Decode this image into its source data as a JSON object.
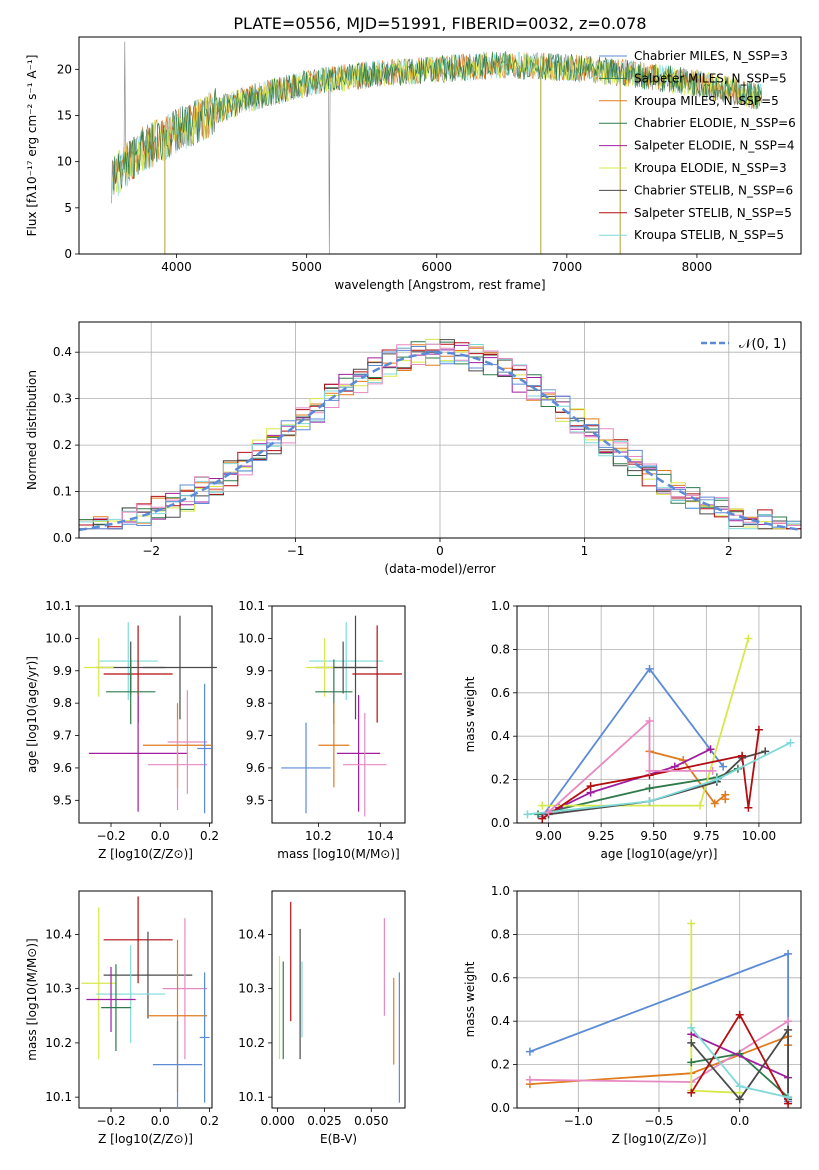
{
  "title": "PLATE=0556, MJD=51991, FIBERID=0032, z=0.078",
  "colors": [
    "#5b8bd6",
    "#e07b1e",
    "#2f7a4a",
    "#a01fa0",
    "#d7e84b",
    "#4a4a4a",
    "#b30e12",
    "#7fd9d9",
    "#e78ac3",
    "#ff7f0e",
    "#808080"
  ],
  "chart_data": [
    {
      "id": "spectrum",
      "type": "line",
      "xlabel": "wavelength [Angstrom, rest frame]",
      "ylabel": "Flux [fλ10⁻¹⁷ erg cm⁻² s⁻¹ A⁻¹]",
      "xlim": [
        3250,
        8800
      ],
      "ylim": [
        0,
        23.5
      ],
      "xticks": [
        "4000",
        "5000",
        "6000",
        "7000",
        "8000"
      ],
      "yticks": [
        "0",
        "5",
        "10",
        "15",
        "20"
      ],
      "legend_position": "right",
      "series": [
        {
          "name": "Chabrier MILES, N_SSP=3",
          "color": "#5b8bd6"
        },
        {
          "name": "Salpeter MILES, N_SSP=5",
          "color": "#2f7a4a"
        },
        {
          "name": "Kroupa MILES, N_SSP=5",
          "color": "#e07b1e"
        },
        {
          "name": "Chabrier ELODIE, N_SSP=6",
          "color": "#2f7a4a"
        },
        {
          "name": "Salpeter ELODIE, N_SSP=4",
          "color": "#a01fa0"
        },
        {
          "name": "Kroupa ELODIE, N_SSP=3",
          "color": "#d7e84b"
        },
        {
          "name": "Chabrier STELIB, N_SSP=6",
          "color": "#4a4a4a"
        },
        {
          "name": "Salpeter STELIB, N_SSP=5",
          "color": "#b30e12"
        },
        {
          "name": "Kroupa STELIB, N_SSP=5",
          "color": "#7fd9d9"
        }
      ],
      "continuum": [
        [
          3500,
          8
        ],
        [
          3700,
          11
        ],
        [
          3900,
          12.5
        ],
        [
          4100,
          14
        ],
        [
          4300,
          15.5
        ],
        [
          4600,
          17
        ],
        [
          5000,
          18.5
        ],
        [
          5500,
          19.5
        ],
        [
          6000,
          20
        ],
        [
          6500,
          20.5
        ],
        [
          7000,
          20.2
        ],
        [
          7500,
          19.5
        ],
        [
          8000,
          18.5
        ],
        [
          8500,
          17
        ]
      ]
    },
    {
      "id": "residuals",
      "type": "line",
      "xlabel": "(data-model)/error",
      "ylabel": "Normed distribution",
      "xlim": [
        -2.5,
        2.5
      ],
      "ylim": [
        0,
        0.465
      ],
      "xticks": [
        "−2",
        "−1",
        "0",
        "1",
        "2"
      ],
      "yticks": [
        "0.0",
        "0.1",
        "0.2",
        "0.3",
        "0.4"
      ],
      "legend": "𝒩(0, 1)",
      "legend_position": "top-right",
      "grid": true
    },
    {
      "id": "age-vs-Z",
      "type": "scatter",
      "xlabel": "Z [log10(Z/Z⊙)]",
      "ylabel": "age  [log10(age/yr)]",
      "xlim": [
        -0.33,
        0.21
      ],
      "ylim": [
        9.43,
        10.1
      ],
      "xticks": [
        "−0.2",
        "0.0",
        "0.2"
      ],
      "yticks": [
        "9.5",
        "9.6",
        "9.7",
        "9.8",
        "9.9",
        "10.0",
        "10.1"
      ],
      "points": [
        {
          "x": -0.13,
          "y": 9.93,
          "xerr": 0.12,
          "yerr": 0.12,
          "color": "#7fd9d9"
        },
        {
          "x": -0.09,
          "y": 9.89,
          "xerr": 0.14,
          "yerr": 0.15,
          "color": "#b30e12"
        },
        {
          "x": -0.12,
          "y": 9.91,
          "xerr": 0.14,
          "yerr": 0.08,
          "color": "#4a4a4a"
        },
        {
          "x": -0.25,
          "y": 9.91,
          "xerr": 0.06,
          "yerr": 0.09,
          "color": "#d7e84b"
        },
        {
          "x": -0.12,
          "y": 9.835,
          "xerr": 0.1,
          "yerr": 0.1,
          "color": "#2f7a4a"
        },
        {
          "x": -0.09,
          "y": 9.645,
          "xerr": 0.2,
          "yerr": 0.18,
          "color": "#a01fa0"
        },
        {
          "x": 0.08,
          "y": 9.91,
          "xerr": 0.15,
          "yerr": 0.16,
          "color": "#4a4a4a"
        },
        {
          "x": 0.11,
          "y": 9.68,
          "xerr": 0.08,
          "yerr": 0.16,
          "color": "#e78ac3"
        },
        {
          "x": 0.07,
          "y": 9.67,
          "xerr": 0.14,
          "yerr": 0.13,
          "color": "#e07b1e"
        },
        {
          "x": 0.07,
          "y": 9.61,
          "xerr": 0.12,
          "yerr": 0.14,
          "color": "#e78ac3"
        },
        {
          "x": 0.18,
          "y": 9.66,
          "xerr": 0.03,
          "yerr": 0.2,
          "color": "#5b8bd6"
        }
      ]
    },
    {
      "id": "age-vs-mass",
      "type": "scatter",
      "xlabel": "mass [log10(M/M⊙)]",
      "xlim": [
        10.05,
        10.48
      ],
      "ylim": [
        9.43,
        10.1
      ],
      "xticks": [
        "10.2",
        "10.4"
      ],
      "yticks": [
        "9.5",
        "9.6",
        "9.7",
        "9.8",
        "9.9",
        "10.0",
        "10.1"
      ],
      "points": [
        {
          "x": 10.29,
          "y": 9.93,
          "xerr": 0.12,
          "yerr": 0.12,
          "color": "#7fd9d9"
        },
        {
          "x": 10.39,
          "y": 9.89,
          "xerr": 0.08,
          "yerr": 0.15,
          "color": "#b30e12"
        },
        {
          "x": 10.28,
          "y": 9.91,
          "xerr": 0.09,
          "yerr": 0.08,
          "color": "#4a4a4a"
        },
        {
          "x": 10.22,
          "y": 9.91,
          "xerr": 0.06,
          "yerr": 0.09,
          "color": "#d7e84b"
        },
        {
          "x": 10.25,
          "y": 9.835,
          "xerr": 0.06,
          "yerr": 0.1,
          "color": "#2f7a4a"
        },
        {
          "x": 10.33,
          "y": 9.645,
          "xerr": 0.07,
          "yerr": 0.18,
          "color": "#a01fa0"
        },
        {
          "x": 10.32,
          "y": 9.91,
          "xerr": 0.07,
          "yerr": 0.16,
          "color": "#4a4a4a"
        },
        {
          "x": 10.35,
          "y": 9.61,
          "xerr": 0.07,
          "yerr": 0.16,
          "color": "#e78ac3"
        },
        {
          "x": 10.25,
          "y": 9.67,
          "xerr": 0.05,
          "yerr": 0.13,
          "color": "#e07b1e"
        },
        {
          "x": 10.16,
          "y": 9.6,
          "xerr": 0.08,
          "yerr": 0.14,
          "color": "#5b8bd6"
        }
      ]
    },
    {
      "id": "weight-vs-age",
      "type": "line",
      "xlabel": "age  [log10(age/yr)]",
      "ylabel": "mass weight",
      "xlim": [
        8.85,
        10.2
      ],
      "ylim": [
        0,
        1
      ],
      "xticks": [
        "9.00",
        "9.25",
        "9.50",
        "9.75",
        "10.00"
      ],
      "yticks": [
        "0.0",
        "0.2",
        "0.4",
        "0.6",
        "0.8",
        "1.0"
      ],
      "grid": true,
      "series": [
        {
          "color": "#5b8bd6",
          "points": [
            [
              8.97,
              0.03
            ],
            [
              9.48,
              0.71
            ],
            [
              9.83,
              0.26
            ]
          ]
        },
        {
          "color": "#e07b1e",
          "points": [
            [
              9.48,
              0.33
            ],
            [
              9.64,
              0.29
            ],
            [
              9.79,
              0.09
            ],
            [
              9.84,
              0.13
            ],
            [
              9.84,
              0.11
            ]
          ]
        },
        {
          "color": "#2f7a4a",
          "points": [
            [
              8.95,
              0.04
            ],
            [
              9.48,
              0.16
            ],
            [
              9.8,
              0.21
            ],
            [
              9.9,
              0.25
            ]
          ]
        },
        {
          "color": "#a01fa0",
          "points": [
            [
              9.05,
              0.07
            ],
            [
              9.2,
              0.14
            ],
            [
              9.6,
              0.26
            ],
            [
              9.77,
              0.34
            ]
          ]
        },
        {
          "color": "#d7e84b",
          "points": [
            [
              8.97,
              0.08
            ],
            [
              9.72,
              0.08
            ],
            [
              9.95,
              0.85
            ]
          ]
        },
        {
          "color": "#4a4a4a",
          "points": [
            [
              9.0,
              0.04
            ],
            [
              9.48,
              0.1
            ],
            [
              9.8,
              0.19
            ],
            [
              9.92,
              0.3
            ],
            [
              10.03,
              0.33
            ]
          ]
        },
        {
          "color": "#b30e12",
          "points": [
            [
              8.97,
              0.02
            ],
            [
              9.2,
              0.17
            ],
            [
              9.48,
              0.22
            ],
            [
              9.92,
              0.31
            ],
            [
              9.95,
              0.07
            ],
            [
              10.0,
              0.43
            ]
          ]
        },
        {
          "color": "#7fd9d9",
          "points": [
            [
              8.9,
              0.04
            ],
            [
              9.48,
              0.1
            ],
            [
              9.8,
              0.2
            ],
            [
              10.15,
              0.37
            ]
          ]
        },
        {
          "color": "#e78ac3",
          "points": [
            [
              9.0,
              0.05
            ],
            [
              9.48,
              0.47
            ],
            [
              9.48,
              0.24
            ],
            [
              9.78,
              0.24
            ]
          ]
        }
      ]
    },
    {
      "id": "mass-vs-Z",
      "type": "scatter",
      "xlabel": "Z [log10(Z/Z⊙)]",
      "ylabel": "mass [log10(M/M⊙)]",
      "xlim": [
        -0.33,
        0.21
      ],
      "ylim": [
        10.08,
        10.48
      ],
      "xticks": [
        "−0.2",
        "0.0",
        "0.2"
      ],
      "yticks": [
        "10.1",
        "10.2",
        "10.3",
        "10.4"
      ],
      "points": [
        {
          "x": -0.09,
          "y": 10.39,
          "xerr": 0.14,
          "yerr": 0.08,
          "color": "#b30e12"
        },
        {
          "x": -0.05,
          "y": 10.325,
          "xerr": 0.18,
          "yerr": 0.08,
          "color": "#4a4a4a"
        },
        {
          "x": -0.25,
          "y": 10.31,
          "xerr": 0.07,
          "yerr": 0.14,
          "color": "#d7e84b"
        },
        {
          "x": -0.12,
          "y": 10.29,
          "xerr": 0.14,
          "yerr": 0.09,
          "color": "#7fd9d9"
        },
        {
          "x": -0.2,
          "y": 10.28,
          "xerr": 0.1,
          "yerr": 0.06,
          "color": "#a01fa0"
        },
        {
          "x": -0.18,
          "y": 10.265,
          "xerr": 0.06,
          "yerr": 0.08,
          "color": "#2f7a4a"
        },
        {
          "x": 0.1,
          "y": 10.3,
          "xerr": 0.09,
          "yerr": 0.13,
          "color": "#e78ac3"
        },
        {
          "x": 0.07,
          "y": 10.25,
          "xerr": 0.12,
          "yerr": 0.14,
          "color": "#e07b1e"
        },
        {
          "x": 0.07,
          "y": 10.16,
          "xerr": 0.1,
          "yerr": 0.08,
          "color": "#5b8bd6"
        },
        {
          "x": 0.18,
          "y": 10.21,
          "xerr": 0.02,
          "yerr": 0.12,
          "color": "#5b8bd6"
        }
      ]
    },
    {
      "id": "mass-vs-ebv",
      "type": "scatter",
      "xlabel": "E(B-V)",
      "xlim": [
        -0.003,
        0.068
      ],
      "ylim": [
        10.08,
        10.48
      ],
      "xticks": [
        "0.000",
        "0.025",
        "0.050"
      ],
      "yticks": [
        "10.1",
        "10.2",
        "10.3",
        "10.4"
      ],
      "points": [
        {
          "x": 0.001,
          "y": 10.265,
          "yerr": 0.095,
          "color": "#d7e84b"
        },
        {
          "x": 0.003,
          "y": 10.26,
          "yerr": 0.09,
          "color": "#2f7a4a"
        },
        {
          "x": 0.007,
          "y": 10.35,
          "yerr": 0.11,
          "color": "#b30e12"
        },
        {
          "x": 0.012,
          "y": 10.29,
          "yerr": 0.12,
          "color": "#4a4a4a"
        },
        {
          "x": 0.013,
          "y": 10.28,
          "yerr": 0.07,
          "color": "#7fd9d9"
        },
        {
          "x": 0.057,
          "y": 10.34,
          "yerr": 0.09,
          "color": "#e78ac3"
        },
        {
          "x": 0.062,
          "y": 10.24,
          "yerr": 0.08,
          "color": "#e07b1e"
        },
        {
          "x": 0.065,
          "y": 10.21,
          "yerr": 0.12,
          "color": "#5b8bd6"
        }
      ]
    },
    {
      "id": "weight-vs-Z",
      "type": "line",
      "xlabel": "Z [log10(Z/Z⊙)]",
      "ylabel": "mass weight",
      "xlim": [
        -1.38,
        0.38
      ],
      "ylim": [
        0,
        1
      ],
      "xticks": [
        "−1.0",
        "−0.5",
        "0.0"
      ],
      "yticks": [
        "0.0",
        "0.2",
        "0.4",
        "0.6",
        "0.8",
        "1.0"
      ],
      "grid": true,
      "series": [
        {
          "color": "#5b8bd6",
          "points": [
            [
              -1.3,
              0.26
            ],
            [
              0.3,
              0.71
            ],
            [
              0.3,
              0.03
            ]
          ]
        },
        {
          "color": "#e07b1e",
          "points": [
            [
              -1.3,
              0.11
            ],
            [
              -0.3,
              0.16
            ],
            [
              0.3,
              0.33
            ],
            [
              0.3,
              0.29
            ]
          ]
        },
        {
          "color": "#e78ac3",
          "points": [
            [
              -1.3,
              0.13
            ],
            [
              -0.3,
              0.12
            ],
            [
              0.3,
              0.4
            ]
          ]
        },
        {
          "color": "#d7e84b",
          "points": [
            [
              -0.3,
              0.85
            ],
            [
              -0.3,
              0.08
            ],
            [
              0.0,
              0.07
            ]
          ]
        },
        {
          "color": "#2f7a4a",
          "points": [
            [
              -0.3,
              0.21
            ],
            [
              0.0,
              0.25
            ],
            [
              0.3,
              0.05
            ]
          ]
        },
        {
          "color": "#a01fa0",
          "points": [
            [
              -0.3,
              0.34
            ],
            [
              0.3,
              0.14
            ]
          ]
        },
        {
          "color": "#4a4a4a",
          "points": [
            [
              -0.3,
              0.3
            ],
            [
              0.0,
              0.04
            ],
            [
              0.3,
              0.36
            ],
            [
              0.3,
              0.04
            ]
          ]
        },
        {
          "color": "#b30e12",
          "points": [
            [
              -0.3,
              0.07
            ],
            [
              0.0,
              0.43
            ],
            [
              0.3,
              0.02
            ]
          ]
        },
        {
          "color": "#7fd9d9",
          "points": [
            [
              -0.3,
              0.37
            ],
            [
              0.0,
              0.1
            ],
            [
              0.3,
              0.05
            ]
          ]
        }
      ]
    }
  ]
}
